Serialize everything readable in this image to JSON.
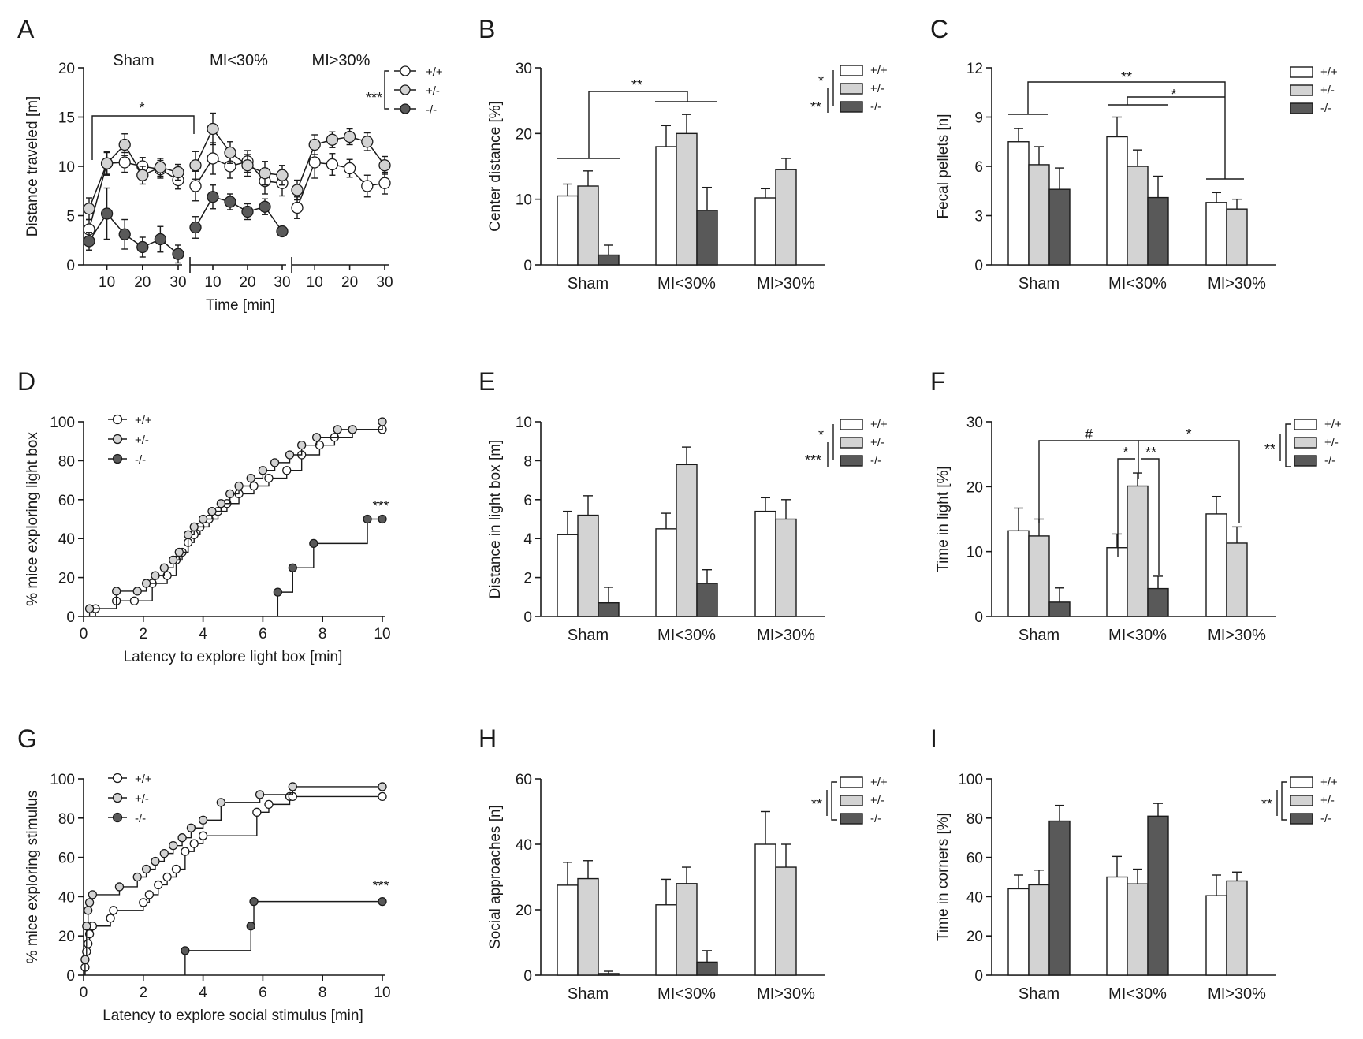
{
  "colors": {
    "+/+": "#ffffff",
    "+/-": "#d3d3d3",
    "-/-": "#595959",
    "line": "#1a1a1a"
  },
  "chart_data": [
    {
      "panel": "A",
      "type": "line",
      "ylabel": "Distance traveled [m]",
      "xlabel": "Time [min]",
      "ylim": [
        0,
        20
      ],
      "yticks": [
        0,
        5,
        10,
        15,
        20
      ],
      "xticks": [
        10,
        20,
        30
      ],
      "groups": [
        "Sham",
        "MI<30%",
        "MI>30%"
      ],
      "x": [
        5,
        10,
        15,
        20,
        25,
        30
      ],
      "legend": [
        "+/+",
        "+/-",
        "-/-"
      ],
      "legend_sig": "***",
      "annotations": [
        {
          "text": "*"
        }
      ],
      "series": [
        {
          "name": "+/+",
          "group": "Sham",
          "values": [
            3.6,
            10.3,
            10.4,
            10.0,
            9.7,
            8.6
          ],
          "err": [
            1.0,
            1.2,
            1.0,
            0.9,
            0.9,
            0.9
          ]
        },
        {
          "name": "+/-",
          "group": "Sham",
          "values": [
            5.7,
            10.3,
            12.2,
            9.1,
            9.9,
            9.4
          ],
          "err": [
            1.1,
            1.1,
            1.1,
            0.9,
            0.9,
            0.8
          ]
        },
        {
          "name": "-/-",
          "group": "Sham",
          "values": [
            2.4,
            5.2,
            3.1,
            1.8,
            2.6,
            1.1
          ],
          "err": [
            0.9,
            2.6,
            1.5,
            1.0,
            1.3,
            0.9
          ]
        },
        {
          "name": "+/+",
          "group": "MI<30%",
          "values": [
            8.0,
            10.8,
            10.0,
            10.5,
            8.5,
            8.3
          ],
          "err": [
            1.5,
            1.6,
            1.2,
            1.1,
            1.3,
            1.3
          ]
        },
        {
          "name": "+/-",
          "group": "MI<30%",
          "values": [
            10.1,
            13.8,
            11.4,
            10.1,
            9.3,
            9.1
          ],
          "err": [
            1.4,
            1.6,
            1.1,
            1.1,
            1.2,
            1.0
          ]
        },
        {
          "name": "-/-",
          "group": "MI<30%",
          "values": [
            3.8,
            6.9,
            6.4,
            5.4,
            5.9,
            3.4
          ],
          "err": [
            1.1,
            1.2,
            0.8,
            0.8,
            0.8,
            0.4
          ]
        },
        {
          "name": "+/+",
          "group": "MI>30%",
          "values": [
            5.8,
            10.4,
            10.2,
            9.8,
            8.0,
            8.3
          ],
          "err": [
            1.1,
            1.6,
            1.1,
            0.9,
            1.1,
            1.1
          ]
        },
        {
          "name": "+/-",
          "group": "MI>30%",
          "values": [
            7.6,
            12.2,
            12.7,
            13.0,
            12.5,
            10.1
          ],
          "err": [
            1.0,
            1.0,
            0.8,
            0.8,
            0.9,
            0.9
          ]
        }
      ]
    },
    {
      "panel": "B",
      "type": "bar",
      "ylabel": "Center distance [%]",
      "categories": [
        "Sham",
        "MI<30%",
        "MI>30%"
      ],
      "ylim": [
        0,
        30
      ],
      "yticks": [
        0,
        10,
        20,
        30
      ],
      "legend": [
        "+/+",
        "+/-",
        "-/-"
      ],
      "legend_sig": [
        "*",
        "**"
      ],
      "annotations": [
        {
          "text": "**"
        }
      ],
      "series": [
        {
          "name": "+/+",
          "values": [
            10.5,
            18.0,
            10.2
          ],
          "err": [
            1.8,
            3.2,
            1.4
          ]
        },
        {
          "name": "+/-",
          "values": [
            12.0,
            20.0,
            14.5
          ],
          "err": [
            2.3,
            2.9,
            1.7
          ]
        },
        {
          "name": "-/-",
          "values": [
            1.5,
            8.3,
            null
          ],
          "err": [
            1.5,
            3.5,
            null
          ]
        }
      ]
    },
    {
      "panel": "C",
      "type": "bar",
      "ylabel": "Fecal pellets [n]",
      "categories": [
        "Sham",
        "MI<30%",
        "MI>30%"
      ],
      "ylim": [
        0,
        12
      ],
      "yticks": [
        0,
        3,
        6,
        9,
        12
      ],
      "legend": [
        "+/+",
        "+/-",
        "-/-"
      ],
      "annotations": [
        {
          "text": "**"
        },
        {
          "text": "*"
        }
      ],
      "series": [
        {
          "name": "+/+",
          "values": [
            7.5,
            7.8,
            3.8
          ],
          "err": [
            0.8,
            1.2,
            0.6
          ]
        },
        {
          "name": "+/-",
          "values": [
            6.1,
            6.0,
            3.4
          ],
          "err": [
            1.1,
            1.0,
            0.6
          ]
        },
        {
          "name": "-/-",
          "values": [
            4.6,
            4.1,
            null
          ],
          "err": [
            1.3,
            1.3,
            null
          ]
        }
      ]
    },
    {
      "panel": "D",
      "type": "line",
      "ylabel": "% mice exploring light box",
      "xlabel": "Latency to explore light box [min]",
      "xlim": [
        0,
        10
      ],
      "ylim": [
        0,
        100
      ],
      "xticks": [
        0,
        2,
        4,
        6,
        8,
        10
      ],
      "yticks": [
        0,
        20,
        40,
        60,
        80,
        100
      ],
      "legend": [
        "+/+",
        "+/-",
        "-/-"
      ],
      "annotations": [
        {
          "text": "***"
        }
      ],
      "series": [
        {
          "name": "+/+",
          "x": [
            0.4,
            1.1,
            1.7,
            2.3,
            2.8,
            3.1,
            3.3,
            3.5,
            3.7,
            3.9,
            4.2,
            4.5,
            4.8,
            5.2,
            5.7,
            6.2,
            6.8,
            7.3,
            7.9,
            8.4,
            9.0,
            10.0
          ],
          "y": [
            4,
            8,
            8,
            17,
            21,
            29,
            33,
            38,
            42,
            46,
            50,
            54,
            58,
            63,
            67,
            71,
            75,
            83,
            88,
            92,
            96,
            96
          ]
        },
        {
          "name": "+/-",
          "x": [
            0.2,
            1.1,
            1.8,
            2.1,
            2.4,
            2.7,
            3.0,
            3.2,
            3.5,
            3.7,
            4.0,
            4.3,
            4.6,
            4.9,
            5.2,
            5.6,
            6.0,
            6.4,
            6.9,
            7.3,
            7.8,
            8.5,
            9.0,
            10.0
          ],
          "y": [
            4,
            13,
            13,
            17,
            21,
            25,
            29,
            33,
            42,
            46,
            50,
            54,
            58,
            63,
            67,
            71,
            75,
            79,
            83,
            88,
            92,
            96,
            96,
            100
          ]
        },
        {
          "name": "-/-",
          "x": [
            6.5,
            7.0,
            7.7,
            9.5,
            10.0
          ],
          "y": [
            12.5,
            25,
            37.5,
            50,
            50
          ]
        }
      ]
    },
    {
      "panel": "E",
      "type": "bar",
      "ylabel": "Distance in light box [m]",
      "categories": [
        "Sham",
        "MI<30%",
        "MI>30%"
      ],
      "ylim": [
        0,
        10
      ],
      "yticks": [
        0,
        2,
        4,
        6,
        8,
        10
      ],
      "legend": [
        "+/+",
        "+/-",
        "-/-"
      ],
      "legend_sig": [
        "*",
        "***"
      ],
      "series": [
        {
          "name": "+/+",
          "values": [
            4.2,
            4.5,
            5.4
          ],
          "err": [
            1.2,
            0.8,
            0.7
          ]
        },
        {
          "name": "+/-",
          "values": [
            5.2,
            7.8,
            5.0
          ],
          "err": [
            1.0,
            0.9,
            1.0
          ]
        },
        {
          "name": "-/-",
          "values": [
            0.7,
            1.7,
            null
          ],
          "err": [
            0.8,
            0.7,
            null
          ]
        }
      ]
    },
    {
      "panel": "F",
      "type": "bar",
      "ylabel": "Time in light [%]",
      "categories": [
        "Sham",
        "MI<30%",
        "MI>30%"
      ],
      "ylim": [
        0,
        30
      ],
      "yticks": [
        0,
        10,
        20,
        30
      ],
      "legend": [
        "+/+",
        "+/-",
        "-/-"
      ],
      "legend_sig": "**",
      "annotations": [
        {
          "text": "#"
        },
        {
          "text": "*"
        },
        {
          "text": "*"
        },
        {
          "text": "**"
        }
      ],
      "series": [
        {
          "name": "+/+",
          "values": [
            13.2,
            10.6,
            15.8
          ],
          "err": [
            3.5,
            2.1,
            2.7
          ]
        },
        {
          "name": "+/-",
          "values": [
            12.4,
            20.1,
            11.3
          ],
          "err": [
            2.6,
            2.0,
            2.5
          ]
        },
        {
          "name": "-/-",
          "values": [
            2.2,
            4.3,
            null
          ],
          "err": [
            2.2,
            1.9,
            null
          ]
        }
      ]
    },
    {
      "panel": "G",
      "type": "line",
      "ylabel": "% mice exploring stimulus",
      "xlabel": "Latency to explore social stimulus [min]",
      "xlim": [
        0,
        10
      ],
      "ylim": [
        0,
        100
      ],
      "xticks": [
        0,
        2,
        4,
        6,
        8,
        10
      ],
      "yticks": [
        0,
        20,
        40,
        60,
        80,
        100
      ],
      "legend": [
        "+/+",
        "+/-",
        "-/-"
      ],
      "annotations": [
        {
          "text": "***"
        }
      ],
      "series": [
        {
          "name": "+/+",
          "x": [
            0.05,
            0.1,
            0.15,
            0.2,
            0.3,
            0.9,
            1.0,
            2.0,
            2.2,
            2.5,
            2.8,
            3.1,
            3.4,
            3.7,
            4.0,
            5.8,
            6.2,
            6.9,
            7.0,
            10.0
          ],
          "y": [
            4,
            12,
            16,
            21,
            25,
            29,
            33,
            37,
            41,
            46,
            50,
            54,
            63,
            67,
            71,
            83,
            87,
            91,
            91,
            91
          ]
        },
        {
          "name": "+/-",
          "x": [
            0.05,
            0.1,
            0.15,
            0.2,
            0.3,
            1.2,
            1.8,
            2.1,
            2.4,
            2.7,
            3.0,
            3.3,
            3.6,
            4.0,
            4.6,
            5.9,
            7.0,
            10.0
          ],
          "y": [
            8,
            25,
            33,
            37,
            41,
            45,
            50,
            54,
            58,
            62,
            66,
            70,
            75,
            79,
            88,
            92,
            96,
            96
          ]
        },
        {
          "name": "-/-",
          "x": [
            3.4,
            5.6,
            5.7,
            10.0
          ],
          "y": [
            12.5,
            25,
            37.5,
            37.5
          ]
        }
      ]
    },
    {
      "panel": "H",
      "type": "bar",
      "ylabel": "Social approaches [n]",
      "categories": [
        "Sham",
        "MI<30%",
        "MI>30%"
      ],
      "ylim": [
        0,
        60
      ],
      "yticks": [
        0,
        20,
        40,
        60
      ],
      "legend": [
        "+/+",
        "+/-",
        "-/-"
      ],
      "legend_sig": "**",
      "series": [
        {
          "name": "+/+",
          "values": [
            27.5,
            21.5,
            40.0
          ],
          "err": [
            7.0,
            7.8,
            10.0
          ]
        },
        {
          "name": "+/-",
          "values": [
            29.5,
            28.0,
            33.0
          ],
          "err": [
            5.5,
            5.0,
            7.0
          ]
        },
        {
          "name": "-/-",
          "values": [
            0.5,
            4.0,
            null
          ],
          "err": [
            0.7,
            3.5,
            null
          ]
        }
      ]
    },
    {
      "panel": "I",
      "type": "bar",
      "ylabel": "Time in corners [%]",
      "categories": [
        "Sham",
        "MI<30%",
        "MI>30%"
      ],
      "ylim": [
        0,
        100
      ],
      "yticks": [
        0,
        20,
        40,
        60,
        80,
        100
      ],
      "legend": [
        "+/+",
        "+/-",
        "-/-"
      ],
      "legend_sig": "**",
      "series": [
        {
          "name": "+/+",
          "values": [
            44.0,
            50.0,
            40.5
          ],
          "err": [
            7.0,
            10.5,
            10.5
          ]
        },
        {
          "name": "+/-",
          "values": [
            46.0,
            46.5,
            48.0
          ],
          "err": [
            7.5,
            7.5,
            4.5
          ]
        },
        {
          "name": "-/-",
          "values": [
            78.5,
            81.0,
            null
          ],
          "err": [
            8.0,
            6.5,
            null
          ]
        }
      ]
    }
  ]
}
